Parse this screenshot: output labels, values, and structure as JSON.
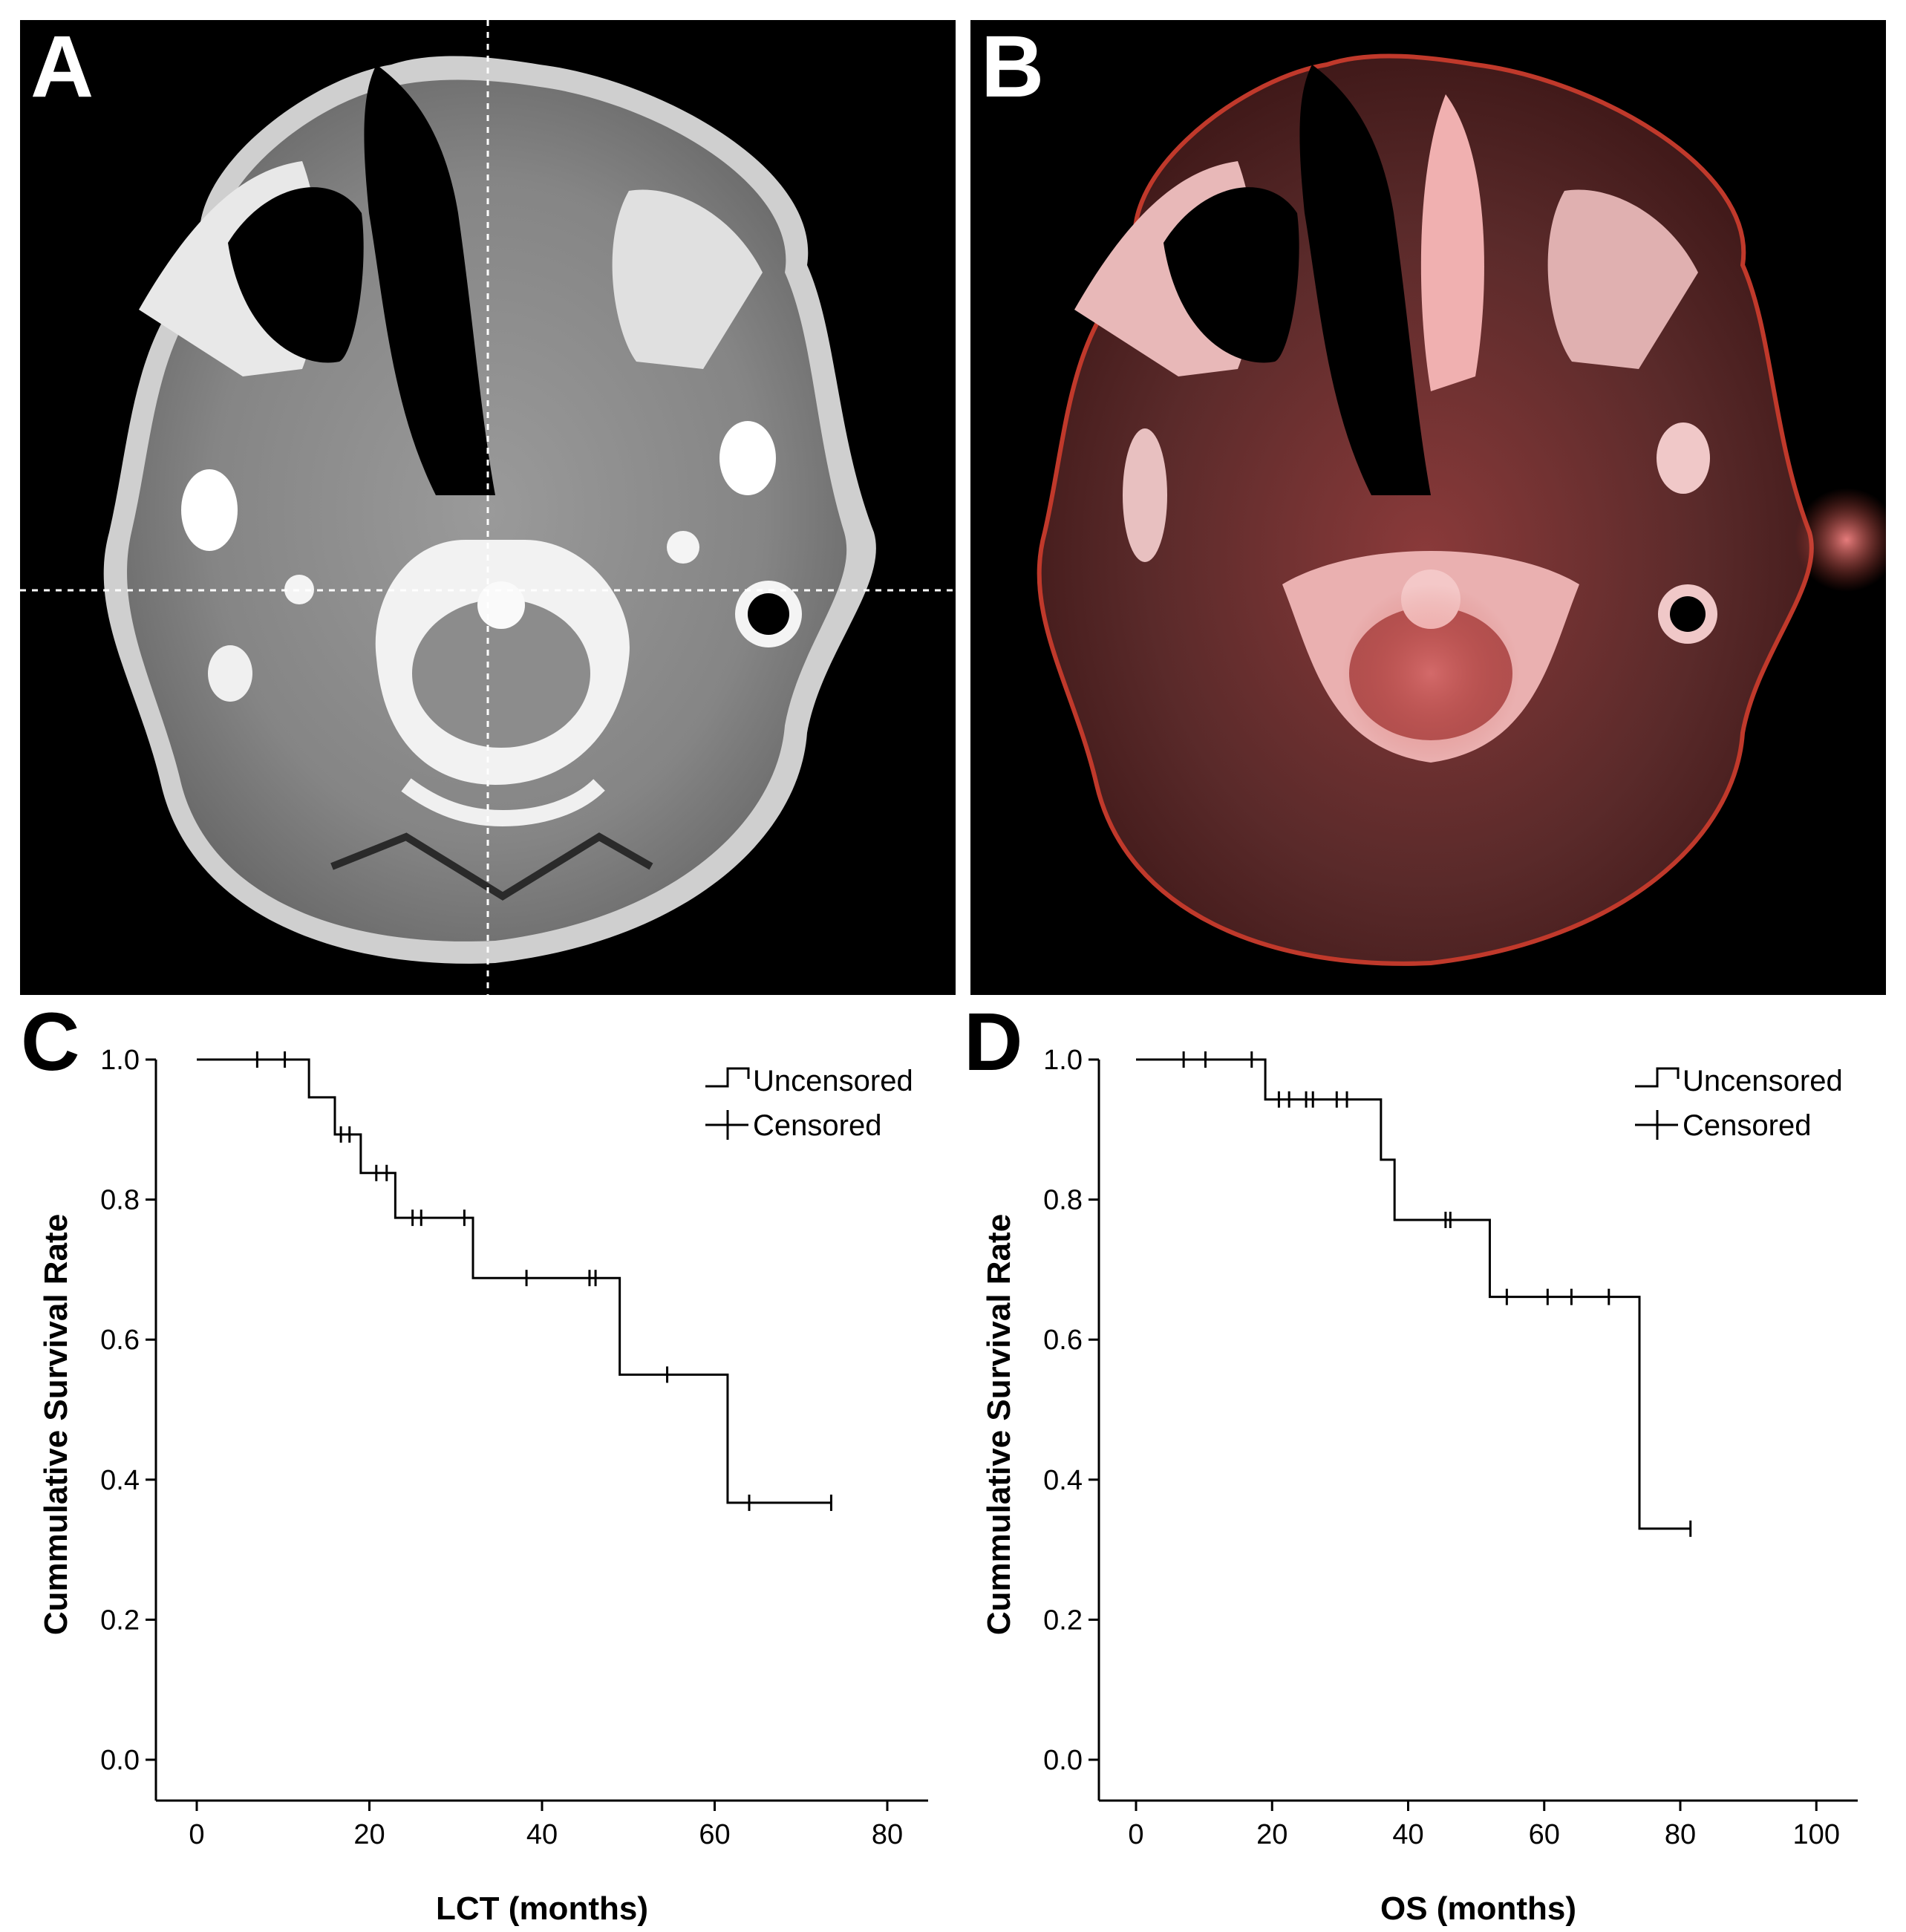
{
  "panels": {
    "a": {
      "letter": "A"
    },
    "b": {
      "letter": "B"
    }
  },
  "colors": {
    "ct_tissue": "#8a8a8a",
    "pet_overlay": "#c0392b",
    "background": "#000000"
  },
  "chart_data": [
    {
      "panel_letter": "C",
      "type": "line",
      "subtype": "kaplan-meier",
      "title": "",
      "xlabel": "LCT (months)",
      "ylabel": "Cummulative Survival Rate",
      "xlim": [
        0,
        85
      ],
      "ylim": [
        0.0,
        1.0
      ],
      "x_ticks": [
        "0",
        "20",
        "40",
        "60",
        "80"
      ],
      "y_ticks": [
        "0.0",
        "0.2",
        "0.4",
        "0.6",
        "0.8",
        "1.0"
      ],
      "grid": false,
      "legend": {
        "position": "top-right",
        "entries": [
          "Uncensored",
          "Censored"
        ]
      },
      "steps": [
        {
          "x": 0,
          "y": 1.0
        },
        {
          "x": 13,
          "y": 0.946
        },
        {
          "x": 16,
          "y": 0.893
        },
        {
          "x": 19,
          "y": 0.838
        },
        {
          "x": 23,
          "y": 0.774
        },
        {
          "x": 32,
          "y": 0.688
        },
        {
          "x": 49,
          "y": 0.55
        },
        {
          "x": 61.5,
          "y": 0.367
        }
      ],
      "end_x": 73.5,
      "censored": [
        {
          "x": 7,
          "y": 1.0
        },
        {
          "x": 10.2,
          "y": 1.0
        },
        {
          "x": 16.7,
          "y": 0.893
        },
        {
          "x": 17.7,
          "y": 0.893
        },
        {
          "x": 20.8,
          "y": 0.838
        },
        {
          "x": 22,
          "y": 0.838
        },
        {
          "x": 25,
          "y": 0.774
        },
        {
          "x": 26,
          "y": 0.774
        },
        {
          "x": 31,
          "y": 0.774
        },
        {
          "x": 38.2,
          "y": 0.688
        },
        {
          "x": 45.5,
          "y": 0.688
        },
        {
          "x": 46.2,
          "y": 0.688
        },
        {
          "x": 54.5,
          "y": 0.55
        },
        {
          "x": 64,
          "y": 0.367
        },
        {
          "x": 73.5,
          "y": 0.367
        }
      ]
    },
    {
      "panel_letter": "D",
      "type": "line",
      "subtype": "kaplan-meier",
      "title": "",
      "xlabel": "OS (months)",
      "ylabel": "Cummulative Survival Rate",
      "xlim": [
        0,
        106
      ],
      "ylim": [
        0.0,
        1.0
      ],
      "x_ticks": [
        "0",
        "20",
        "40",
        "60",
        "80",
        "100"
      ],
      "y_ticks": [
        "0.0",
        "0.2",
        "0.4",
        "0.6",
        "0.8",
        "1.0"
      ],
      "grid": false,
      "legend": {
        "position": "top-right",
        "entries": [
          "Uncensored",
          "Censored"
        ]
      },
      "steps": [
        {
          "x": 0,
          "y": 1.0
        },
        {
          "x": 19,
          "y": 0.943
        },
        {
          "x": 36,
          "y": 0.857
        },
        {
          "x": 38,
          "y": 0.771
        },
        {
          "x": 52,
          "y": 0.661
        },
        {
          "x": 74,
          "y": 0.33
        }
      ],
      "end_x": 81.5,
      "censored": [
        {
          "x": 7,
          "y": 1.0
        },
        {
          "x": 10.2,
          "y": 1.0
        },
        {
          "x": 17,
          "y": 1.0
        },
        {
          "x": 21,
          "y": 0.943
        },
        {
          "x": 22.5,
          "y": 0.943
        },
        {
          "x": 25,
          "y": 0.943
        },
        {
          "x": 26,
          "y": 0.943
        },
        {
          "x": 29.5,
          "y": 0.943
        },
        {
          "x": 31,
          "y": 0.943
        },
        {
          "x": 45.5,
          "y": 0.771
        },
        {
          "x": 46.2,
          "y": 0.771
        },
        {
          "x": 54.5,
          "y": 0.661
        },
        {
          "x": 60.5,
          "y": 0.661
        },
        {
          "x": 64,
          "y": 0.661
        },
        {
          "x": 69.5,
          "y": 0.661
        },
        {
          "x": 81.5,
          "y": 0.33
        }
      ]
    }
  ]
}
